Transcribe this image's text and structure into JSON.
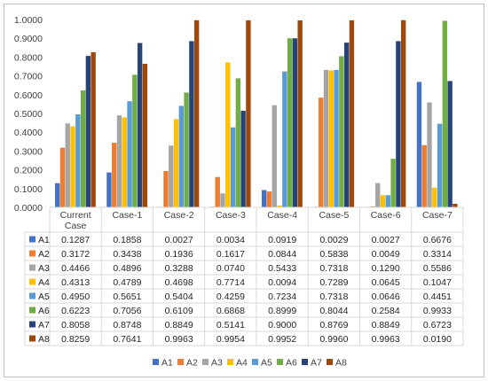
{
  "chart_data": {
    "type": "bar",
    "categories": [
      "Current Case",
      "Case-1",
      "Case-2",
      "Case-3",
      "Case-4",
      "Case-5",
      "Case-6",
      "Case-7"
    ],
    "category_lines": [
      [
        "Current",
        "Case"
      ],
      [
        "Case-1"
      ],
      [
        "Case-2"
      ],
      [
        "Case-3"
      ],
      [
        "Case-4"
      ],
      [
        "Case-5"
      ],
      [
        "Case-6"
      ],
      [
        "Case-7"
      ]
    ],
    "ylim": [
      0,
      1.0
    ],
    "yticks": [
      "0.0000",
      "0.1000",
      "0.2000",
      "0.3000",
      "0.4000",
      "0.5000",
      "0.6000",
      "0.7000",
      "0.8000",
      "0.9000",
      "1.0000"
    ],
    "grid": false,
    "legend_position": "bottom",
    "series": [
      {
        "name": "A1",
        "color": "#4472C4",
        "values": [
          0.1287,
          0.1858,
          0.0027,
          0.0034,
          0.0919,
          0.0029,
          0.0027,
          0.6676
        ],
        "labels": [
          "0.1287",
          "0.1858",
          "0.0027",
          "0.0034",
          "0.0919",
          "0.0029",
          "0.0027",
          "0.6676"
        ]
      },
      {
        "name": "A2",
        "color": "#ED7D31",
        "values": [
          0.3172,
          0.3438,
          0.1936,
          0.1617,
          0.0844,
          0.5838,
          0.0049,
          0.3314
        ],
        "labels": [
          "0.3172",
          "0.3438",
          "0.1936",
          "0.1617",
          "0.0844",
          "0.5838",
          "0.0049",
          "0.3314"
        ]
      },
      {
        "name": "A3",
        "color": "#A5A5A5",
        "values": [
          0.4466,
          0.4896,
          0.3288,
          0.074,
          0.5433,
          0.7318,
          0.129,
          0.5586
        ],
        "labels": [
          "0.4466",
          "0.4896",
          "0.3288",
          "0.0740",
          "0.5433",
          "0.7318",
          "0.1290",
          "0.5586"
        ]
      },
      {
        "name": "A4",
        "color": "#FFC000",
        "values": [
          0.4313,
          0.4789,
          0.4698,
          0.7714,
          0.0094,
          0.7289,
          0.0645,
          0.1047
        ],
        "labels": [
          "0.4313",
          "0.4789",
          "0.4698",
          "0.7714",
          "0.0094",
          "0.7289",
          "0.0645",
          "0.1047"
        ]
      },
      {
        "name": "A5",
        "color": "#5B9BD5",
        "values": [
          0.495,
          0.5651,
          0.5404,
          0.4259,
          0.7234,
          0.7318,
          0.0646,
          0.4451
        ],
        "labels": [
          "0.4950",
          "0.5651",
          "0.5404",
          "0.4259",
          "0.7234",
          "0.7318",
          "0.0646",
          "0.4451"
        ]
      },
      {
        "name": "A6",
        "color": "#70AD47",
        "values": [
          0.6223,
          0.7056,
          0.6109,
          0.6868,
          0.8999,
          0.8044,
          0.2584,
          0.9933
        ],
        "labels": [
          "0.6223",
          "0.7056",
          "0.6109",
          "0.6868",
          "0.8999",
          "0.8044",
          "0.2584",
          "0.9933"
        ]
      },
      {
        "name": "A7",
        "color": "#264478",
        "values": [
          0.8058,
          0.8748,
          0.8849,
          0.5141,
          0.9,
          0.8769,
          0.8849,
          0.6723
        ],
        "labels": [
          "0.8058",
          "0.8748",
          "0.8849",
          "0.5141",
          "0.9000",
          "0.8769",
          "0.8849",
          "0.6723"
        ]
      },
      {
        "name": "A8",
        "color": "#9E480E",
        "values": [
          0.8259,
          0.7641,
          0.9963,
          0.9954,
          0.9952,
          0.996,
          0.9963,
          0.019
        ],
        "labels": [
          "0.8259",
          "0.7641",
          "0.9963",
          "0.9954",
          "0.9952",
          "0.9960",
          "0.9963",
          "0.0190"
        ]
      }
    ]
  }
}
